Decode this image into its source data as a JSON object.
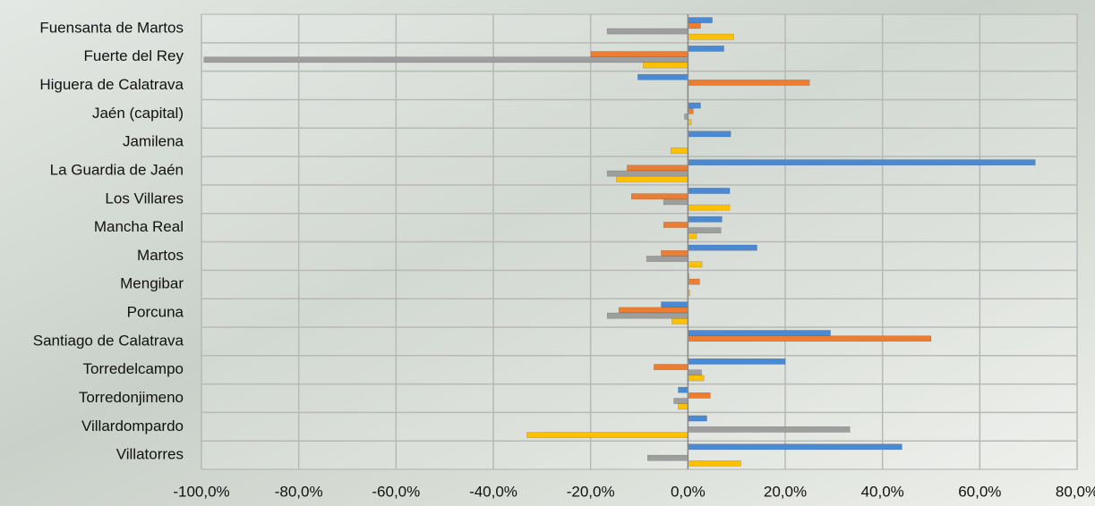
{
  "chart_data": {
    "type": "bar",
    "orientation": "horizontal",
    "categories": [
      "Fuensanta de Martos",
      "Fuerte del Rey",
      "Higuera de Calatrava",
      "Jaén (capital)",
      "Jamilena",
      "La Guardia de Jaén",
      "Los Villares",
      "Mancha Real",
      "Martos",
      "Mengibar",
      "Porcuna",
      "Santiago de Calatrava",
      "Torredelcampo",
      "Torredonjimeno",
      "Villardompardo",
      "Villatorres"
    ],
    "series": [
      {
        "color": "#4a8ad4",
        "values": [
          5.0,
          7.4,
          -10.3,
          2.6,
          8.8,
          71.4,
          8.6,
          7.0,
          14.2,
          0.2,
          -5.5,
          29.3,
          20.0,
          -2.0,
          3.9,
          44.0
        ]
      },
      {
        "color": "#ed7d31",
        "values": [
          2.6,
          -19.9,
          25.0,
          1.1,
          0,
          -12.5,
          -11.6,
          -5.0,
          -5.5,
          2.4,
          -14.2,
          50.0,
          -7.0,
          4.6,
          0,
          0
        ]
      },
      {
        "color": "#9e9e9e",
        "values": [
          -16.6,
          -99.5,
          0,
          -0.7,
          0,
          -16.6,
          -5.0,
          6.8,
          -8.5,
          0,
          -16.6,
          0,
          2.8,
          -2.9,
          33.3,
          -8.3
        ]
      },
      {
        "color": "#ffc000",
        "values": [
          9.4,
          -9.2,
          0,
          0.7,
          -3.5,
          -14.7,
          8.6,
          1.8,
          2.9,
          0.4,
          -3.3,
          0,
          3.3,
          -2.0,
          -33.1,
          10.9
        ]
      }
    ],
    "xlim": [
      -100,
      80
    ],
    "xticks": [
      {
        "value": -100,
        "label": "-100,0%"
      },
      {
        "value": -80,
        "label": "-80,0%"
      },
      {
        "value": -60,
        "label": "-60,0%"
      },
      {
        "value": -40,
        "label": "-40,0%"
      },
      {
        "value": -20,
        "label": "-20,0%"
      },
      {
        "value": 0,
        "label": "0,0%"
      },
      {
        "value": 20,
        "label": "20,0%"
      },
      {
        "value": 40,
        "label": "40,0%"
      },
      {
        "value": 60,
        "label": "60,0%"
      },
      {
        "value": 80,
        "label": "80,0%"
      }
    ],
    "grid": true
  }
}
